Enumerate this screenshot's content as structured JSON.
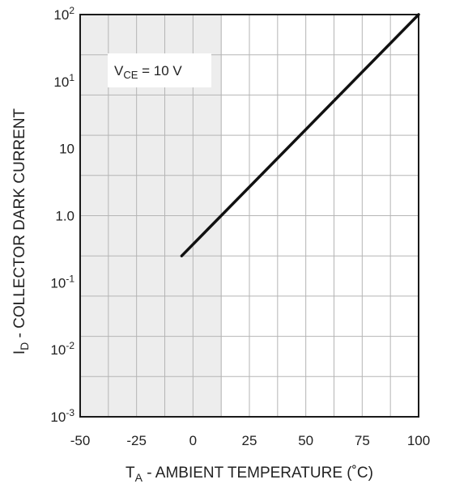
{
  "chart_data": {
    "type": "line",
    "xlabel": {
      "main": "T",
      "sub": "A",
      "rest": " - AMBIENT TEMPERATURE (˚C)"
    },
    "ylabel": {
      "main": "I",
      "sub": "D",
      "rest": " - COLLECTOR DARK CURRENT"
    },
    "x_ticks": [
      "-50",
      "-25",
      "0",
      "25",
      "50",
      "75",
      "100"
    ],
    "y_ticks": [
      {
        "base": "10",
        "exp": "2"
      },
      {
        "base": "10",
        "exp": "1"
      },
      {
        "base": "10",
        "exp": ""
      },
      {
        "base": "1.0",
        "exp": ""
      },
      {
        "base": "10",
        "exp": "-1"
      },
      {
        "base": "10",
        "exp": "-2"
      },
      {
        "base": "10",
        "exp": "-3"
      }
    ],
    "xlim": [
      -50,
      100
    ],
    "ylim_log10": [
      -3,
      2
    ],
    "y_scale": "log",
    "grid": true,
    "series": [
      {
        "points": [
          {
            "x": -5,
            "y": 0.1
          },
          {
            "x": 100,
            "y": 100
          }
        ]
      }
    ],
    "annotation": {
      "main": "V",
      "sub": "CE",
      "rest": " = 10 V"
    },
    "colors": {
      "line": "#111111",
      "grid": "#b5b5b5",
      "frame": "#1a1a1a",
      "shade": "#ededed"
    }
  }
}
